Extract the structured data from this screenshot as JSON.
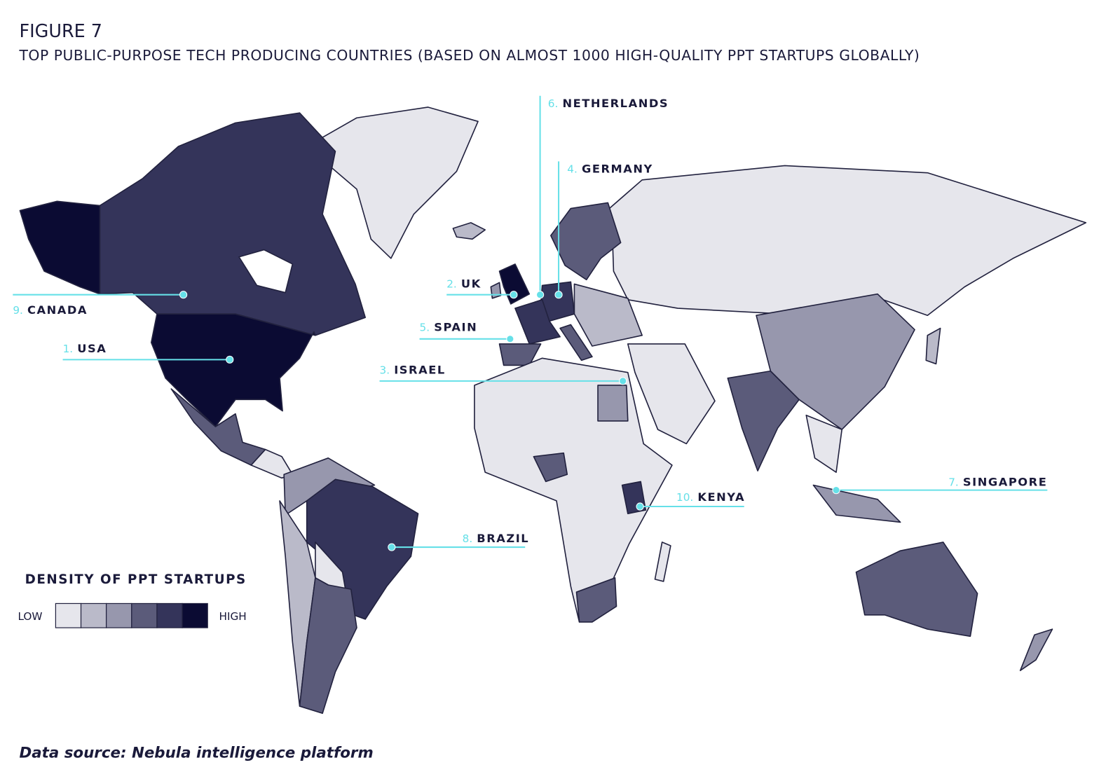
{
  "figure_label": "FIGURE 7",
  "title": "TOP PUBLIC-PURPOSE TECH PRODUCING COUNTRIES (BASED ON ALMOST 1000  HIGH-QUALITY PPT STARTUPS GLOBALLY)",
  "callouts": [
    {
      "rank": "1.",
      "name": "USA"
    },
    {
      "rank": "2.",
      "name": "UK"
    },
    {
      "rank": "3.",
      "name": "ISRAEL"
    },
    {
      "rank": "4.",
      "name": "GERMANY"
    },
    {
      "rank": "5.",
      "name": "SPAIN"
    },
    {
      "rank": "6.",
      "name": "NETHERLANDS"
    },
    {
      "rank": "7.",
      "name": "SINGAPORE"
    },
    {
      "rank": "8.",
      "name": "BRAZIL"
    },
    {
      "rank": "9.",
      "name": "CANADA"
    },
    {
      "rank": "10.",
      "name": "KENYA"
    }
  ],
  "legend": {
    "title": "DENSITY OF PPT STARTUPS",
    "low_label": "LOW",
    "high_label": "HIGH",
    "colors": [
      "#e6e6ec",
      "#babac9",
      "#9797ad",
      "#5b5b7a",
      "#34345a",
      "#0b0b33"
    ]
  },
  "source": "Data source: Nebula intelligence platform"
}
